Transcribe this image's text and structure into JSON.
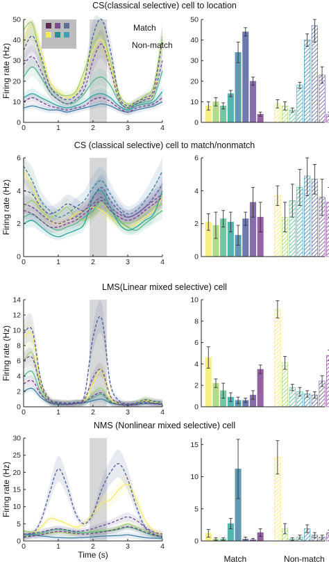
{
  "legend": {
    "match_label": "Match",
    "nonmatch_label": "Non-match",
    "location_colors": [
      "#5a2a55",
      "#7b4f8f",
      "#5d6d94",
      "#f2ea5c",
      "#2a8f93",
      "#3f9fb0"
    ]
  },
  "location_colors": [
    "#f5ea63",
    "#9fd16a",
    "#52b888",
    "#2aa39a",
    "#3a7fa0",
    "#4a5a99",
    "#6a4a93",
    "#7a3c8a"
  ],
  "bar_x_labels": [
    "Match",
    "Non-match"
  ],
  "chart_data": [
    {
      "type": "line",
      "panel": "CS location - time course",
      "title": "CS(classical selective) cell to location",
      "xlabel": "",
      "ylabel": "Firing rate (Hz)",
      "xlim": [
        0,
        4
      ],
      "ylim": [
        0,
        50
      ],
      "xticks": [
        0,
        1,
        2,
        3,
        4
      ],
      "yticks": [
        0,
        10,
        20,
        30,
        40,
        50
      ],
      "shaded_window": [
        1.9,
        2.4
      ],
      "x": [
        0,
        0.25,
        0.5,
        0.75,
        1,
        1.25,
        1.5,
        1.75,
        2,
        2.25,
        2.5,
        2.75,
        3,
        3.25,
        3.5,
        3.75,
        4
      ],
      "series": [
        {
          "style": "solid",
          "values": [
            38,
            47,
            35,
            20,
            15,
            12,
            14,
            22,
            35,
            40,
            28,
            12,
            8,
            10,
            12,
            15,
            40
          ]
        },
        {
          "style": "solid",
          "values": [
            45,
            48,
            30,
            18,
            14,
            13,
            15,
            25,
            38,
            42,
            30,
            14,
            9,
            10,
            13,
            18,
            42
          ]
        },
        {
          "style": "solid",
          "values": [
            22,
            27,
            22,
            15,
            11,
            9,
            10,
            14,
            20,
            22,
            18,
            10,
            7,
            9,
            10,
            12,
            25
          ]
        },
        {
          "style": "solid",
          "values": [
            12,
            14,
            12,
            10,
            8,
            7,
            8,
            10,
            13,
            14,
            12,
            8,
            6,
            8,
            9,
            10,
            15
          ]
        },
        {
          "style": "solid",
          "values": [
            7,
            8,
            7,
            6,
            6,
            5,
            6,
            7,
            8,
            9,
            8,
            6,
            5,
            6,
            7,
            8,
            10
          ]
        },
        {
          "style": "dashed",
          "values": [
            35,
            42,
            32,
            18,
            13,
            11,
            13,
            20,
            42,
            52,
            35,
            13,
            8,
            10,
            12,
            16,
            40
          ]
        },
        {
          "style": "dashed",
          "values": [
            28,
            32,
            25,
            15,
            11,
            9,
            11,
            16,
            30,
            38,
            26,
            11,
            7,
            9,
            11,
            14,
            30
          ]
        },
        {
          "style": "dashed",
          "values": [
            10,
            12,
            10,
            8,
            7,
            6,
            7,
            8,
            11,
            12,
            10,
            7,
            5,
            7,
            8,
            9,
            12
          ]
        }
      ]
    },
    {
      "type": "bar",
      "panel": "CS location - bars",
      "ylim": [
        0,
        50
      ],
      "yticks": [
        0,
        10,
        20,
        30,
        40,
        50
      ],
      "match": {
        "values": [
          8,
          10,
          8,
          14,
          34,
          44,
          20,
          4
        ],
        "errors": [
          2,
          2,
          1.5,
          1.5,
          5,
          2,
          2,
          1
        ]
      },
      "nonmatch": {
        "values": [
          9,
          8,
          6,
          18,
          40,
          47,
          23,
          4
        ],
        "errors": [
          2,
          2,
          1,
          1.5,
          3,
          8,
          4,
          1
        ]
      }
    },
    {
      "type": "line",
      "panel": "CS match/nonmatch - time course",
      "title": "CS (classical selective) cell to match/nonmatch",
      "xlabel": "",
      "ylabel": "Firing rate (Hz)",
      "xlim": [
        0,
        4
      ],
      "ylim": [
        0,
        6
      ],
      "xticks": [
        0,
        1,
        2,
        3,
        4
      ],
      "yticks": [
        0,
        2,
        4,
        6
      ],
      "shaded_window": [
        1.9,
        2.4
      ],
      "x": [
        0,
        0.25,
        0.5,
        0.75,
        1,
        1.25,
        1.5,
        1.75,
        2,
        2.25,
        2.5,
        2.75,
        3,
        3.25,
        3.5,
        3.75,
        4
      ],
      "series": [
        {
          "style": "solid",
          "values": [
            5.2,
            4.2,
            3.0,
            2.2,
            2.0,
            2.2,
            2.6,
            2.8,
            3.0,
            2.8,
            2.4,
            2.0,
            1.8,
            2.0,
            2.4,
            2.8,
            3.6
          ]
        },
        {
          "style": "solid",
          "values": [
            3.0,
            3.4,
            2.8,
            2.4,
            2.6,
            3.0,
            2.4,
            2.2,
            2.6,
            3.2,
            2.6,
            2.2,
            2.0,
            2.2,
            2.6,
            3.0,
            3.2
          ]
        },
        {
          "style": "solid",
          "values": [
            2.4,
            2.6,
            2.2,
            1.8,
            1.6,
            1.8,
            2.0,
            2.4,
            2.8,
            3.4,
            2.8,
            2.2,
            1.8,
            1.6,
            2.0,
            2.4,
            2.8
          ]
        },
        {
          "style": "solid",
          "values": [
            2.0,
            2.2,
            1.8,
            1.4,
            1.2,
            1.4,
            1.6,
            2.0,
            3.6,
            4.0,
            3.0,
            2.0,
            1.6,
            1.8,
            2.2,
            2.6,
            4.0
          ]
        },
        {
          "style": "dashed",
          "values": [
            5.5,
            4.6,
            3.4,
            2.8,
            2.4,
            2.6,
            3.0,
            3.4,
            4.2,
            4.6,
            3.8,
            3.0,
            2.6,
            2.8,
            3.4,
            4.2,
            5.2
          ]
        },
        {
          "style": "dashed",
          "values": [
            4.0,
            3.8,
            3.0,
            2.6,
            2.8,
            3.2,
            3.0,
            2.8,
            3.6,
            4.2,
            3.4,
            2.8,
            2.4,
            2.6,
            3.0,
            3.6,
            4.4
          ]
        },
        {
          "style": "dashed",
          "values": [
            3.2,
            3.0,
            2.6,
            2.2,
            2.0,
            2.2,
            2.4,
            2.8,
            3.2,
            3.6,
            3.0,
            2.6,
            2.4,
            2.6,
            3.0,
            3.4,
            3.8
          ]
        },
        {
          "style": "dashed",
          "values": [
            2.8,
            2.6,
            2.2,
            1.8,
            1.8,
            2.0,
            2.2,
            2.6,
            3.0,
            3.4,
            2.8,
            2.4,
            2.2,
            2.4,
            2.8,
            3.2,
            3.6
          ]
        }
      ]
    },
    {
      "type": "bar",
      "panel": "CS match/nonmatch - bars",
      "ylim": [
        0,
        6
      ],
      "yticks": [
        0,
        2,
        4,
        6
      ],
      "match": {
        "values": [
          2.1,
          1.9,
          2.3,
          2.1,
          1.3,
          2.3,
          3.3,
          2.4
        ],
        "errors": [
          0.5,
          0.8,
          0.5,
          0.6,
          0.6,
          0.4,
          0.9,
          0.9
        ]
      },
      "nonmatch": {
        "values": [
          3.7,
          2.4,
          3.4,
          4.2,
          4.9,
          4.7,
          3.6,
          3.3
        ],
        "errors": [
          0.6,
          0.9,
          1.0,
          1.1,
          1.2,
          0.9,
          1.1,
          0.9
        ]
      }
    },
    {
      "type": "line",
      "panel": "LMS - time course",
      "title": "LMS(Linear mixed selective) cell",
      "xlabel": "",
      "ylabel": "Firing rate (Hz)",
      "xlim": [
        0,
        4
      ],
      "ylim": [
        0,
        14
      ],
      "xticks": [
        0,
        1,
        2,
        3,
        4
      ],
      "yticks": [
        0,
        2,
        4,
        6,
        8,
        10,
        12,
        14
      ],
      "shaded_window": [
        1.9,
        2.4
      ],
      "x": [
        0,
        0.25,
        0.5,
        0.75,
        1,
        1.25,
        1.5,
        1.75,
        2,
        2.25,
        2.5,
        2.75,
        3,
        3.25,
        3.5,
        3.75,
        4
      ],
      "series": [
        {
          "style": "solid",
          "values": [
            9.0,
            9.4,
            3.0,
            0.8,
            0.5,
            0.4,
            0.5,
            0.8,
            3.0,
            4.8,
            1.2,
            0.4,
            0.3,
            0.4,
            0.8,
            0.6,
            0.5
          ]
        },
        {
          "style": "solid",
          "values": [
            6.0,
            7.0,
            2.4,
            0.8,
            0.5,
            0.4,
            0.5,
            0.6,
            1.8,
            2.4,
            0.8,
            0.4,
            0.3,
            0.5,
            1.0,
            0.7,
            0.5
          ]
        },
        {
          "style": "solid",
          "values": [
            4.0,
            4.6,
            1.8,
            0.6,
            0.4,
            0.4,
            0.5,
            0.6,
            1.2,
            1.6,
            0.6,
            0.3,
            0.3,
            0.4,
            0.6,
            0.5,
            0.4
          ]
        },
        {
          "style": "solid",
          "values": [
            2.0,
            2.4,
            1.2,
            0.5,
            0.3,
            0.3,
            0.4,
            0.5,
            0.8,
            1.0,
            0.5,
            0.3,
            0.2,
            0.3,
            0.4,
            0.4,
            0.3
          ]
        },
        {
          "style": "dashed",
          "values": [
            9.6,
            10.0,
            3.4,
            1.0,
            0.6,
            0.5,
            0.6,
            1.4,
            9.0,
            11.5,
            3.0,
            0.8,
            0.4,
            0.5,
            0.9,
            0.7,
            0.6
          ]
        },
        {
          "style": "dashed",
          "values": [
            6.0,
            6.4,
            2.6,
            0.8,
            0.5,
            0.4,
            0.5,
            0.9,
            3.8,
            4.8,
            1.4,
            0.5,
            0.3,
            0.4,
            0.7,
            0.5,
            0.4
          ]
        },
        {
          "style": "dashed",
          "values": [
            3.0,
            3.4,
            1.6,
            0.6,
            0.4,
            0.3,
            0.4,
            0.6,
            1.4,
            1.8,
            0.7,
            0.3,
            0.2,
            0.3,
            0.5,
            0.4,
            0.3
          ]
        }
      ]
    },
    {
      "type": "bar",
      "panel": "LMS - bars",
      "ylim": [
        0,
        10
      ],
      "yticks": [
        0,
        2,
        4,
        6,
        8,
        10
      ],
      "match": {
        "values": [
          4.6,
          2.2,
          1.5,
          0.9,
          0.6,
          0.6,
          1.1,
          3.5
        ],
        "errors": [
          1.0,
          0.4,
          0.7,
          0.4,
          0.3,
          0.2,
          0.4,
          0.4
        ]
      },
      "nonmatch": {
        "values": [
          9.1,
          4.1,
          1.8,
          1.4,
          1.2,
          1.1,
          2.4,
          4.8
        ],
        "errors": [
          0.8,
          0.6,
          0.3,
          0.4,
          0.3,
          0.3,
          0.5,
          0.5
        ]
      }
    },
    {
      "type": "line",
      "panel": "NMS - time course",
      "title": "NMS (Nonlinear mixed selective) cell",
      "xlabel": "Time (s)",
      "ylabel": "Firing rate (Hz)",
      "xlim": [
        0,
        4
      ],
      "ylim": [
        0,
        30
      ],
      "xticks": [
        0,
        1,
        2,
        3,
        4
      ],
      "yticks": [
        0,
        5,
        10,
        15,
        20,
        25,
        30
      ],
      "shaded_window": [
        1.9,
        2.4
      ],
      "x": [
        0,
        0.25,
        0.5,
        0.75,
        1,
        1.25,
        1.5,
        1.75,
        2,
        2.25,
        2.5,
        2.75,
        3,
        3.25,
        3.5,
        3.75,
        4
      ],
      "series": [
        {
          "style": "solid",
          "values": [
            1.0,
            2.0,
            4.0,
            6.5,
            6.0,
            5.0,
            4.0,
            5.0,
            8.0,
            11.0,
            12.0,
            15.0,
            16.5,
            12.0,
            6.0,
            3.0,
            2.0
          ]
        },
        {
          "style": "solid",
          "values": [
            3.0,
            2.5,
            2.0,
            2.2,
            2.5,
            2.2,
            2.0,
            2.4,
            2.8,
            3.0,
            3.2,
            4.0,
            5.0,
            4.0,
            3.0,
            2.0,
            1.5
          ]
        },
        {
          "style": "solid",
          "values": [
            1.5,
            1.8,
            2.2,
            3.0,
            3.4,
            3.0,
            2.6,
            2.4,
            2.6,
            2.8,
            3.0,
            3.4,
            4.0,
            3.4,
            2.4,
            1.6,
            1.2
          ]
        },
        {
          "style": "solid",
          "values": [
            2.0,
            1.8,
            1.5,
            1.2,
            1.0,
            0.9,
            0.9,
            1.0,
            1.2,
            1.4,
            1.5,
            1.6,
            1.8,
            1.4,
            1.0,
            0.8,
            0.8
          ]
        },
        {
          "style": "dashed",
          "values": [
            1.0,
            2.0,
            6.0,
            14.0,
            21.0,
            16.0,
            8.0,
            5.0,
            8.0,
            15.0,
            20.0,
            22.5,
            18.0,
            10.0,
            4.0,
            2.0,
            1.0
          ]
        },
        {
          "style": "dashed",
          "values": [
            2.0,
            2.2,
            2.6,
            3.2,
            3.6,
            3.2,
            2.8,
            3.0,
            3.6,
            4.4,
            5.2,
            6.2,
            7.0,
            6.0,
            4.0,
            2.6,
            2.0
          ]
        },
        {
          "style": "dashed",
          "values": [
            1.2,
            1.4,
            1.8,
            2.4,
            2.8,
            2.6,
            2.2,
            2.0,
            2.2,
            2.6,
            3.0,
            3.6,
            4.2,
            3.6,
            2.6,
            1.8,
            1.4
          ]
        }
      ]
    },
    {
      "type": "bar",
      "panel": "NMS - bars",
      "ylim": [
        0,
        16
      ],
      "yticks": [
        0,
        5,
        10,
        15
      ],
      "match": {
        "values": [
          1.2,
          0.3,
          0.3,
          2.7,
          11.2,
          0.3,
          0.2,
          1.3
        ],
        "errors": [
          0.6,
          0.2,
          0.2,
          0.8,
          4.6,
          0.3,
          0.2,
          0.6
        ]
      },
      "nonmatch": {
        "values": [
          13.0,
          1.9,
          0.3,
          0.6,
          1.9,
          0.9,
          0.6,
          1.3
        ],
        "errors": [
          2.6,
          0.8,
          0.2,
          0.3,
          0.6,
          0.4,
          0.3,
          0.4
        ]
      }
    }
  ]
}
